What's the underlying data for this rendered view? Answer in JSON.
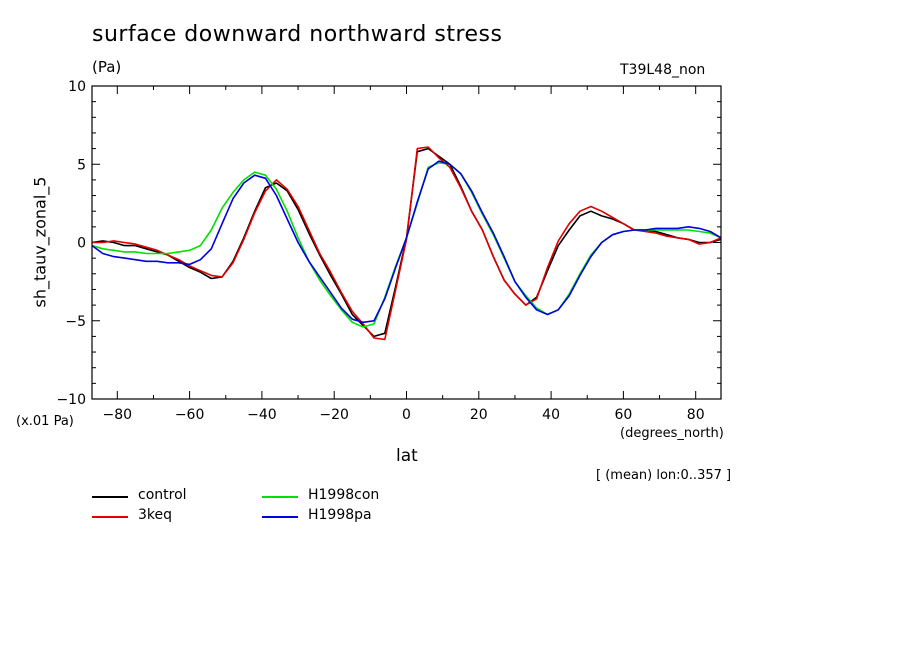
{
  "chart_data": {
    "type": "line",
    "title": "surface downward northward stress",
    "units": "(Pa)",
    "run_id": "T39L48_non",
    "ylabel": "sh_tauv_zonal_5",
    "y_scale_note": "(x.01 Pa)",
    "xlabel": "lat",
    "x_units": "(degrees_north)",
    "footnote": "[ (mean) lon:0..357 ]",
    "xlim": [
      -87,
      87
    ],
    "ylim": [
      -10,
      10
    ],
    "x_ticks": [
      -80,
      -60,
      -40,
      -20,
      0,
      20,
      40,
      60,
      80
    ],
    "y_ticks": [
      -10,
      -5,
      0,
      5,
      10
    ],
    "x_tick_labels": [
      "−80",
      "−60",
      "−40",
      "−20",
      "0",
      "20",
      "40",
      "60",
      "80"
    ],
    "y_tick_labels": [
      "−10",
      "−5",
      "0",
      "5",
      "10"
    ],
    "x": [
      -87,
      -84,
      -81,
      -78,
      -75,
      -72,
      -69,
      -66,
      -63,
      -60,
      -57,
      -54,
      -51,
      -48,
      -45,
      -42,
      -39,
      -36,
      -33,
      -30,
      -27,
      -24,
      -21,
      -18,
      -15,
      -12,
      -9,
      -6,
      -3,
      0,
      3,
      6,
      9,
      12,
      15,
      18,
      21,
      24,
      27,
      30,
      33,
      36,
      39,
      42,
      45,
      48,
      51,
      54,
      57,
      60,
      63,
      66,
      69,
      72,
      75,
      78,
      81,
      84,
      87
    ],
    "series": [
      {
        "name": "control",
        "color": "#000000",
        "values": [
          0.0,
          0.1,
          0.0,
          -0.2,
          -0.2,
          -0.4,
          -0.6,
          -0.8,
          -1.2,
          -1.6,
          -1.9,
          -2.3,
          -2.2,
          -1.2,
          0.3,
          2.0,
          3.5,
          3.8,
          3.3,
          2.1,
          0.6,
          -0.8,
          -2.1,
          -3.3,
          -4.6,
          -5.3,
          -6.0,
          -5.8,
          -2.8,
          0.3,
          5.8,
          6.0,
          5.5,
          5.0,
          3.6,
          2.0,
          0.8,
          -0.9,
          -2.4,
          -3.3,
          -4.0,
          -3.5,
          -1.8,
          -0.2,
          0.8,
          1.7,
          2.0,
          1.7,
          1.5,
          1.2,
          0.8,
          0.8,
          0.7,
          0.5,
          0.3,
          0.2,
          0.0,
          0.0,
          0.2
        ]
      },
      {
        "name": "3keq",
        "color": "#e00000",
        "values": [
          0.0,
          0.0,
          0.1,
          0.0,
          -0.1,
          -0.3,
          -0.5,
          -0.8,
          -1.1,
          -1.5,
          -1.8,
          -2.1,
          -2.2,
          -1.3,
          0.2,
          1.9,
          3.3,
          4.0,
          3.4,
          2.3,
          0.8,
          -0.7,
          -1.9,
          -3.2,
          -4.4,
          -5.2,
          -6.1,
          -6.2,
          -3.0,
          0.2,
          6.0,
          6.1,
          5.4,
          4.8,
          3.5,
          2.0,
          0.8,
          -0.9,
          -2.4,
          -3.3,
          -4.0,
          -3.6,
          -1.6,
          0.1,
          1.2,
          2.0,
          2.3,
          2.0,
          1.6,
          1.2,
          0.8,
          0.7,
          0.6,
          0.4,
          0.3,
          0.2,
          -0.1,
          0.0,
          0.3
        ]
      },
      {
        "name": "H1998con",
        "color": "#00e000",
        "values": [
          -0.2,
          -0.4,
          -0.5,
          -0.6,
          -0.6,
          -0.7,
          -0.7,
          -0.7,
          -0.6,
          -0.5,
          -0.2,
          0.8,
          2.2,
          3.2,
          4.0,
          4.5,
          4.3,
          3.4,
          2.0,
          0.3,
          -1.2,
          -2.4,
          -3.4,
          -4.3,
          -5.1,
          -5.4,
          -5.2,
          -3.5,
          -1.5,
          0.3,
          2.5,
          4.8,
          5.1,
          5.0,
          4.4,
          3.2,
          1.8,
          0.5,
          -1.0,
          -2.5,
          -3.4,
          -4.2,
          -4.6,
          -4.3,
          -3.3,
          -2.0,
          -0.8,
          0.0,
          0.5,
          0.7,
          0.8,
          0.8,
          0.8,
          0.8,
          0.8,
          0.8,
          0.7,
          0.6,
          0.3
        ]
      },
      {
        "name": "H1998pa",
        "color": "#0000e0",
        "values": [
          -0.2,
          -0.7,
          -0.9,
          -1.0,
          -1.1,
          -1.2,
          -1.2,
          -1.3,
          -1.3,
          -1.4,
          -1.1,
          -0.4,
          1.2,
          2.8,
          3.8,
          4.3,
          4.1,
          3.0,
          1.5,
          0.0,
          -1.2,
          -2.2,
          -3.2,
          -4.2,
          -4.9,
          -5.1,
          -5.0,
          -3.6,
          -1.6,
          0.3,
          2.6,
          4.7,
          5.2,
          5.0,
          4.4,
          3.3,
          1.9,
          0.6,
          -0.9,
          -2.5,
          -3.5,
          -4.3,
          -4.6,
          -4.3,
          -3.4,
          -2.1,
          -0.9,
          0.0,
          0.5,
          0.7,
          0.8,
          0.8,
          0.9,
          0.9,
          0.9,
          1.0,
          0.9,
          0.7,
          0.3
        ]
      }
    ],
    "grid": false,
    "legend_placement": "bottom-left"
  }
}
